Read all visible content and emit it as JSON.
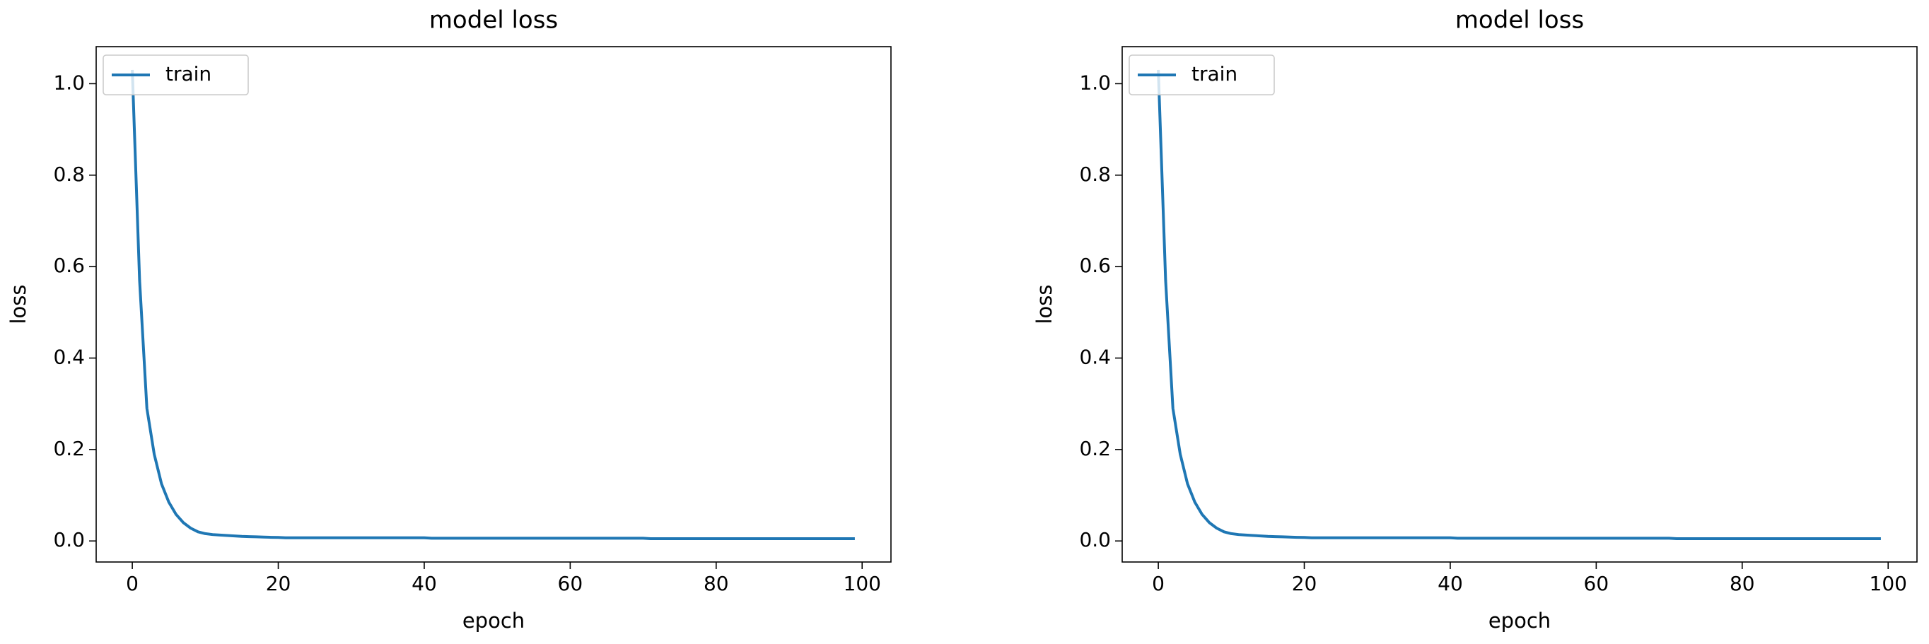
{
  "chart_data": [
    {
      "type": "line",
      "title": "model loss",
      "xlabel": "epoch",
      "ylabel": "loss",
      "x": [
        0,
        1,
        2,
        3,
        4,
        5,
        6,
        7,
        8,
        9,
        10,
        11,
        12,
        13,
        14,
        15,
        16,
        17,
        18,
        19,
        20,
        21,
        22,
        23,
        24,
        25,
        26,
        27,
        28,
        29,
        30,
        31,
        32,
        33,
        34,
        35,
        36,
        37,
        38,
        39,
        40,
        41,
        42,
        43,
        44,
        45,
        46,
        47,
        48,
        49,
        50,
        51,
        52,
        53,
        54,
        55,
        56,
        57,
        58,
        59,
        60,
        61,
        62,
        63,
        64,
        65,
        66,
        67,
        68,
        69,
        70,
        71,
        72,
        73,
        74,
        75,
        76,
        77,
        78,
        79,
        80,
        81,
        82,
        83,
        84,
        85,
        86,
        87,
        88,
        89,
        90,
        91,
        92,
        93,
        94,
        95,
        96,
        97,
        98,
        99
      ],
      "series": [
        {
          "name": "train",
          "color": "#1f77b4",
          "values": [
            1.03,
            0.57,
            0.29,
            0.19,
            0.125,
            0.085,
            0.058,
            0.04,
            0.028,
            0.02,
            0.016,
            0.014,
            0.013,
            0.012,
            0.011,
            0.01,
            0.0095,
            0.009,
            0.0085,
            0.008,
            0.0078,
            0.007,
            0.007,
            0.007,
            0.007,
            0.007,
            0.007,
            0.007,
            0.007,
            0.007,
            0.007,
            0.007,
            0.007,
            0.007,
            0.007,
            0.007,
            0.007,
            0.007,
            0.007,
            0.007,
            0.007,
            0.006,
            0.006,
            0.006,
            0.006,
            0.006,
            0.006,
            0.006,
            0.006,
            0.006,
            0.006,
            0.006,
            0.006,
            0.006,
            0.006,
            0.006,
            0.006,
            0.006,
            0.006,
            0.006,
            0.006,
            0.006,
            0.006,
            0.006,
            0.006,
            0.006,
            0.006,
            0.006,
            0.006,
            0.006,
            0.006,
            0.005,
            0.005,
            0.005,
            0.005,
            0.005,
            0.005,
            0.005,
            0.005,
            0.005,
            0.005,
            0.005,
            0.005,
            0.005,
            0.005,
            0.005,
            0.005,
            0.005,
            0.005,
            0.005,
            0.005,
            0.005,
            0.005,
            0.005,
            0.005,
            0.005,
            0.005,
            0.005,
            0.005,
            0.005
          ]
        }
      ],
      "xlim": [
        -4.95,
        103.95
      ],
      "xticks": [
        0,
        20,
        40,
        60,
        80,
        100
      ],
      "ylim": [
        -0.046,
        1.081
      ],
      "yticks": [
        {
          "value": 0,
          "label": "0.0"
        },
        0.2,
        0.4,
        0.6,
        0.8,
        {
          "value": 1,
          "label": "1.0"
        }
      ],
      "legend": "upper left"
    },
    {
      "type": "line",
      "title": "model loss",
      "xlabel": "epoch",
      "ylabel": "loss",
      "x": [
        0,
        1,
        2,
        3,
        4,
        5,
        6,
        7,
        8,
        9,
        10,
        11,
        12,
        13,
        14,
        15,
        16,
        17,
        18,
        19,
        20,
        21,
        22,
        23,
        24,
        25,
        26,
        27,
        28,
        29,
        30,
        31,
        32,
        33,
        34,
        35,
        36,
        37,
        38,
        39,
        40,
        41,
        42,
        43,
        44,
        45,
        46,
        47,
        48,
        49,
        50,
        51,
        52,
        53,
        54,
        55,
        56,
        57,
        58,
        59,
        60,
        61,
        62,
        63,
        64,
        65,
        66,
        67,
        68,
        69,
        70,
        71,
        72,
        73,
        74,
        75,
        76,
        77,
        78,
        79,
        80,
        81,
        82,
        83,
        84,
        85,
        86,
        87,
        88,
        89,
        90,
        91,
        92,
        93,
        94,
        95,
        96,
        97,
        98,
        99
      ],
      "series": [
        {
          "name": "train",
          "color": "#1f77b4",
          "values": [
            1.03,
            0.57,
            0.29,
            0.19,
            0.125,
            0.085,
            0.058,
            0.04,
            0.028,
            0.02,
            0.016,
            0.014,
            0.013,
            0.012,
            0.011,
            0.01,
            0.0095,
            0.009,
            0.0085,
            0.008,
            0.0078,
            0.007,
            0.007,
            0.007,
            0.007,
            0.007,
            0.007,
            0.007,
            0.007,
            0.007,
            0.007,
            0.007,
            0.007,
            0.007,
            0.007,
            0.007,
            0.007,
            0.007,
            0.007,
            0.007,
            0.007,
            0.006,
            0.006,
            0.006,
            0.006,
            0.006,
            0.006,
            0.006,
            0.006,
            0.006,
            0.006,
            0.006,
            0.006,
            0.006,
            0.006,
            0.006,
            0.006,
            0.006,
            0.006,
            0.006,
            0.006,
            0.006,
            0.006,
            0.006,
            0.006,
            0.006,
            0.006,
            0.006,
            0.006,
            0.006,
            0.006,
            0.005,
            0.005,
            0.005,
            0.005,
            0.005,
            0.005,
            0.005,
            0.005,
            0.005,
            0.005,
            0.005,
            0.005,
            0.005,
            0.005,
            0.005,
            0.005,
            0.005,
            0.005,
            0.005,
            0.005,
            0.005,
            0.005,
            0.005,
            0.005,
            0.005,
            0.005,
            0.005,
            0.005,
            0.005
          ]
        }
      ],
      "xlim": [
        -4.95,
        103.95
      ],
      "xticks": [
        0,
        20,
        40,
        60,
        80,
        100
      ],
      "ylim": [
        -0.046,
        1.081
      ],
      "yticks": [
        {
          "value": 0,
          "label": "0.0"
        },
        0.2,
        0.4,
        0.6,
        0.8,
        {
          "value": 1,
          "label": "1.0"
        }
      ],
      "legend": "upper left"
    }
  ]
}
